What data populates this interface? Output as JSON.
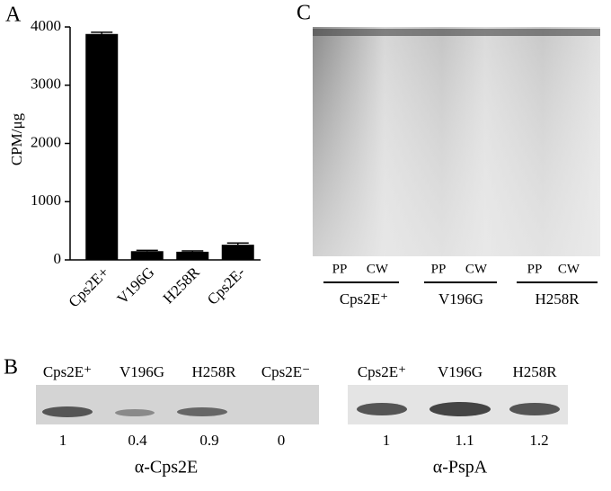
{
  "chart_data": {
    "type": "bar",
    "panel": "A",
    "y_label": "CPM/μg",
    "categories": [
      "Cps2E+",
      "V196G",
      "H258R",
      "Cps2E-"
    ],
    "values": [
      3880,
      150,
      140,
      260
    ],
    "errors": [
      30,
      15,
      15,
      30
    ],
    "color": "#000000",
    "ylim": [
      0,
      4000
    ],
    "yticks": [
      0,
      1000,
      2000,
      3000,
      4000
    ],
    "grid": false
  },
  "panel_b": {
    "label": "B",
    "left": {
      "lanes": [
        "Cps2E⁺",
        "V196G",
        "H258R",
        "Cps2E⁻"
      ],
      "quantities": [
        1,
        0.4,
        0.9,
        0
      ],
      "antibody": "α-Cps2E"
    },
    "right": {
      "lanes": [
        "Cps2E⁺",
        "V196G",
        "H258R"
      ],
      "quantities": [
        1,
        1.1,
        1.2
      ],
      "antibody": "α-PspA"
    }
  },
  "panel_c": {
    "label": "C",
    "fractions": [
      "PP",
      "CW",
      "PP",
      "CW",
      "PP",
      "CW"
    ],
    "strains": [
      "Cps2E⁺",
      "V196G",
      "H258R"
    ]
  }
}
